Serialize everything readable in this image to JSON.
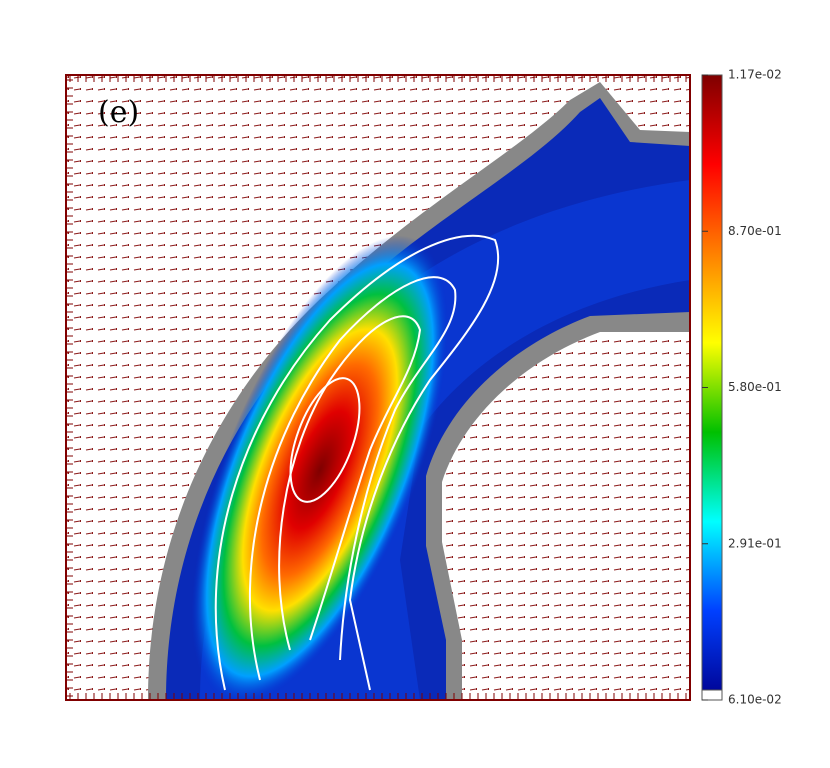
{
  "chart_data": {
    "type": "contour",
    "panel_label": "(e)",
    "colorbar": {
      "labels": [
        "1.17e-02",
        "8.70e-01",
        "5.80e-01",
        "2.91e-01",
        "6.10e-02"
      ],
      "colors": [
        "#7f0000",
        "#ff0000",
        "#ff8000",
        "#ffff00",
        "#00c000",
        "#00ffff",
        "#0040ff",
        "#00008f"
      ]
    }
  }
}
